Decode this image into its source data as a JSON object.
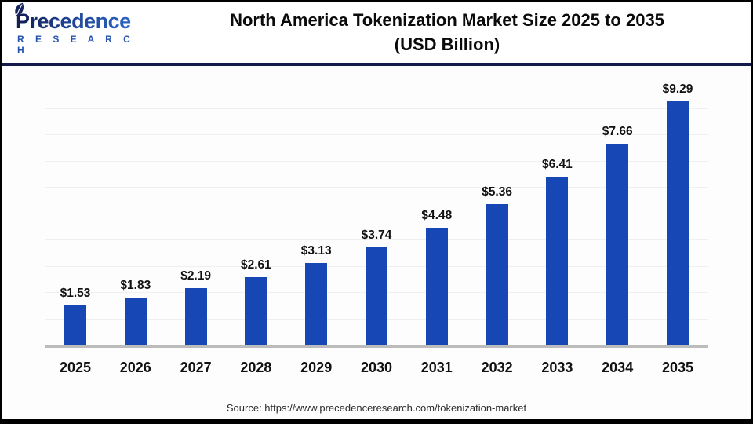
{
  "logo": {
    "brand": "Precedence",
    "sub": "R E S E A R C H"
  },
  "header": {
    "title_line1": "North America Tokenization Market Size 2025 to 2035",
    "title_line2": "(USD Billion)"
  },
  "source": {
    "text": "Source: https://www.precedenceresearch.com/tokenization-market"
  },
  "colors": {
    "bar": "#1747b4",
    "divider_navy": "#131b4d",
    "gridline": "#f0f0f0",
    "baseline": "#bcbcbc",
    "title_text": "#0b0b0b",
    "label_text": "#111111",
    "source_text": "#2b2b2b",
    "logo_navy": "#131c4e",
    "logo_blue": "#2f6fd1"
  },
  "chart_data": {
    "type": "bar",
    "title": "North America Tokenization Market Size 2025 to 2035 (USD Billion)",
    "unit": "USD Billion",
    "categories": [
      "2025",
      "2026",
      "2027",
      "2028",
      "2029",
      "2030",
      "2031",
      "2032",
      "2033",
      "2034",
      "2035"
    ],
    "values": [
      1.53,
      1.83,
      2.19,
      2.61,
      3.13,
      3.74,
      4.48,
      5.36,
      6.41,
      7.66,
      9.29
    ],
    "value_labels": [
      "$1.53",
      "$1.83",
      "$2.19",
      "$2.61",
      "$3.13",
      "$3.74",
      "$4.48",
      "$5.36",
      "$6.41",
      "$7.66",
      "$9.29"
    ],
    "xlabel": "",
    "ylabel": "",
    "ylim": [
      0,
      10
    ],
    "grid": "horizontal gridlines every 1 unit, no y-axis tick labels",
    "legend": "none",
    "bar_color": "#1747b4"
  }
}
